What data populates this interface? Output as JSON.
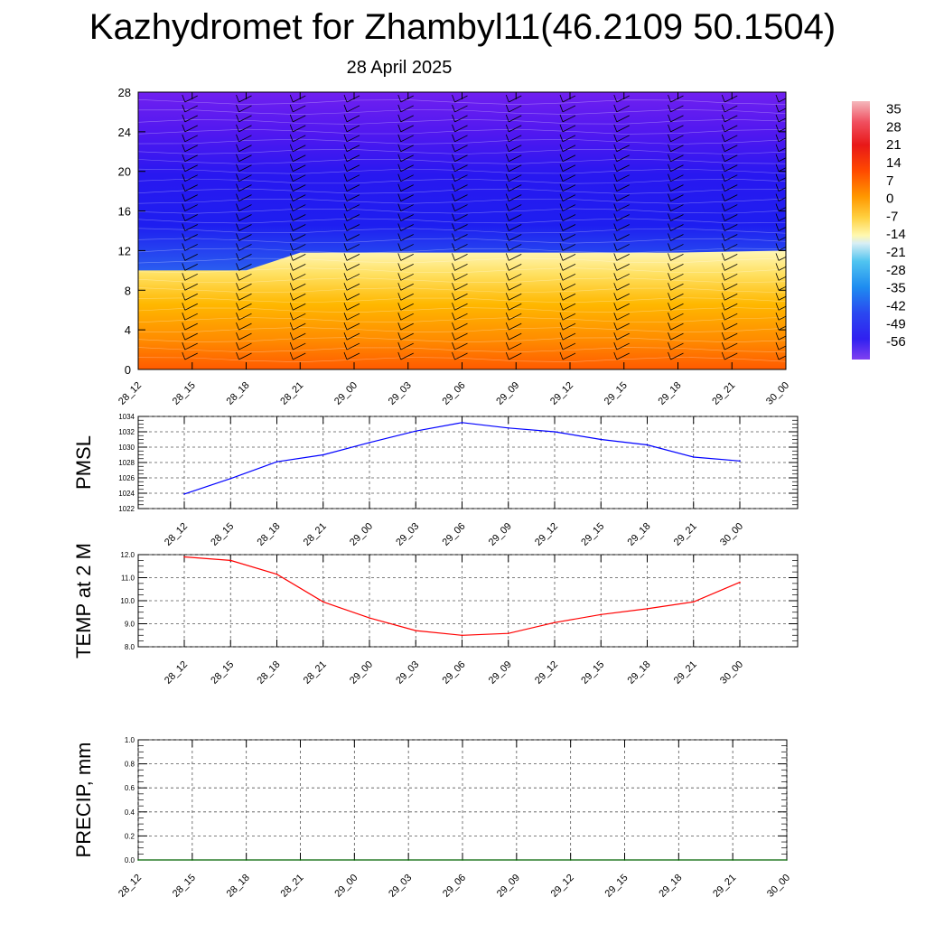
{
  "header": {
    "title": "Kazhydromet for Zhambyl11(46.2109 50.1504)",
    "subtitle": "28 April 2025"
  },
  "time_labels": [
    "28_12",
    "28_15",
    "28_18",
    "28_21",
    "29_00",
    "29_03",
    "29_06",
    "29_09",
    "29_12",
    "29_15",
    "29_18",
    "29_21",
    "30_00"
  ],
  "colors": {
    "pmsl_line": "#0000ff",
    "temp_line": "#ff0000",
    "precip_line": "#006400",
    "grid": "#555555"
  },
  "chart_data": [
    {
      "type": "heatmap",
      "x": [
        "28_12",
        "28_15",
        "28_18",
        "28_21",
        "29_00",
        "29_03",
        "29_06",
        "29_09",
        "29_12",
        "29_15",
        "29_18",
        "29_21",
        "30_00"
      ],
      "ylim": [
        0,
        28
      ],
      "yticks": [
        0,
        4,
        8,
        12,
        16,
        20,
        24,
        28
      ],
      "colorbar": {
        "ticks": [
          35,
          28,
          21,
          14,
          7,
          0,
          -7,
          -14,
          -21,
          -28,
          -35,
          -42,
          -49,
          -56
        ],
        "range": [
          -63,
          38
        ]
      },
      "freezing_level_km": [
        10.0,
        10.0,
        10.0,
        11.8,
        11.8,
        11.8,
        11.8,
        11.8,
        11.8,
        11.8,
        11.8,
        11.9,
        12.0
      ],
      "wind_barbs": "barbs at each time step and height level"
    },
    {
      "type": "line",
      "ylabel": "PMSL",
      "x": [
        "28_12",
        "28_15",
        "28_18",
        "28_21",
        "29_00",
        "29_03",
        "29_06",
        "29_09",
        "29_12",
        "29_15",
        "29_18",
        "29_21",
        "30_00"
      ],
      "values": [
        1023.9,
        1025.9,
        1028.1,
        1029.0,
        1030.6,
        1032.1,
        1033.2,
        1032.5,
        1032.0,
        1031.0,
        1030.3,
        1028.7,
        1028.2
      ],
      "ylim": [
        1022,
        1034
      ],
      "yticks": [
        1022,
        1024,
        1026,
        1028,
        1030,
        1032,
        1034
      ],
      "ytick_labels": [
        "1022",
        "1024",
        "1026",
        "1028",
        "1030",
        "1032",
        "1034"
      ]
    },
    {
      "type": "line",
      "ylabel": "TEMP at 2 M",
      "x": [
        "28_12",
        "28_15",
        "28_18",
        "28_21",
        "29_00",
        "29_03",
        "29_06",
        "29_09",
        "29_12",
        "29_15",
        "29_18",
        "29_21",
        "30_00"
      ],
      "values": [
        11.9,
        11.75,
        11.15,
        9.95,
        9.25,
        8.7,
        8.5,
        8.58,
        9.05,
        9.4,
        9.65,
        9.95,
        10.8
      ],
      "ylim": [
        8,
        12
      ],
      "yticks": [
        8,
        9,
        10,
        11,
        12
      ],
      "ytick_labels": [
        "8.0",
        "9.0",
        "10.0",
        "11.0",
        "12.0"
      ]
    },
    {
      "type": "line",
      "ylabel": "PRECIP, mm",
      "x": [
        "28_12",
        "28_15",
        "28_18",
        "28_21",
        "29_00",
        "29_03",
        "29_06",
        "29_09",
        "29_12",
        "29_15",
        "29_18",
        "29_21",
        "30_00"
      ],
      "values": [
        0,
        0,
        0,
        0,
        0,
        0,
        0,
        0,
        0,
        0,
        0,
        0,
        0
      ],
      "ylim": [
        0,
        1
      ],
      "yticks": [
        0,
        0.2,
        0.4,
        0.6,
        0.8,
        1.0
      ],
      "ytick_labels": [
        "0.0",
        "0.2",
        "0.4",
        "0.6",
        "0.8",
        "1.0"
      ]
    }
  ]
}
